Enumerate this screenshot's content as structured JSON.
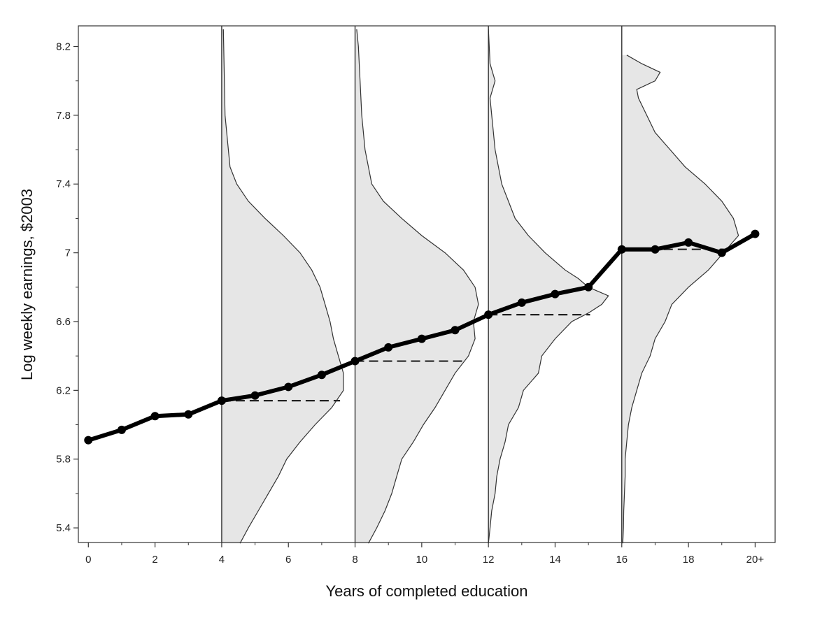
{
  "chart_data": {
    "type": "line",
    "xlabel": "Years of completed education",
    "ylabel": "Log weekly earnings, $2003",
    "xlim": [
      -0.3,
      20.6
    ],
    "ylim": [
      5.315,
      8.32
    ],
    "x_tick_values": [
      0,
      2,
      4,
      6,
      8,
      10,
      12,
      14,
      16,
      18,
      20
    ],
    "x_tick_labels": [
      "0",
      "2",
      "4",
      "6",
      "8",
      "10",
      "12",
      "14",
      "16",
      "18",
      "20+"
    ],
    "y_tick_values": [
      5.4,
      5.8,
      6.2,
      6.6,
      7.0,
      7.4,
      7.8,
      8.2
    ],
    "y_tick_labels": [
      "5.4",
      "5.8",
      "6.2",
      "6.6",
      "7",
      "7.4",
      "7.8",
      "8.2"
    ],
    "grid": false,
    "series": [
      {
        "x": [
          0,
          1,
          2,
          3,
          4,
          5,
          6,
          7,
          8,
          9,
          10,
          11,
          12,
          13,
          14,
          15,
          16,
          17,
          18,
          19,
          20
        ],
        "values": [
          5.91,
          5.97,
          6.05,
          6.06,
          6.14,
          6.17,
          6.22,
          6.29,
          6.37,
          6.45,
          6.5,
          6.55,
          6.64,
          6.71,
          6.76,
          6.8,
          7.02,
          7.02,
          7.06,
          7.0,
          7.11
        ]
      }
    ],
    "density_distributions": [
      {
        "education_years": 4,
        "mean": 6.14,
        "mean_line_to": 7.55,
        "y": [
          8.3,
          7.8,
          7.5,
          7.4,
          7.3,
          7.2,
          7.1,
          7.0,
          6.9,
          6.8,
          6.7,
          6.6,
          6.5,
          6.4,
          6.3,
          6.2,
          6.1,
          6.0,
          5.9,
          5.8,
          5.7,
          5.6,
          5.5,
          5.4,
          5.31
        ],
        "x": [
          4.05,
          4.1,
          4.25,
          4.45,
          4.8,
          5.3,
          5.85,
          6.35,
          6.7,
          6.95,
          7.1,
          7.25,
          7.35,
          7.5,
          7.65,
          7.65,
          7.3,
          6.8,
          6.35,
          5.95,
          5.7,
          5.4,
          5.1,
          4.8,
          4.55
        ]
      },
      {
        "education_years": 8,
        "mean": 6.37,
        "mean_line_to": 11.25,
        "y": [
          8.3,
          8.2,
          8.0,
          7.8,
          7.6,
          7.4,
          7.3,
          7.2,
          7.1,
          7.0,
          6.9,
          6.8,
          6.7,
          6.6,
          6.5,
          6.4,
          6.3,
          6.2,
          6.1,
          6.0,
          5.9,
          5.8,
          5.7,
          5.6,
          5.5,
          5.4,
          5.31
        ],
        "x": [
          8.05,
          8.1,
          8.15,
          8.2,
          8.3,
          8.5,
          8.85,
          9.4,
          10.0,
          10.7,
          11.25,
          11.6,
          11.7,
          11.55,
          11.6,
          11.4,
          11.0,
          10.7,
          10.4,
          10.05,
          9.75,
          9.4,
          9.25,
          9.1,
          8.9,
          8.65,
          8.4
        ]
      },
      {
        "education_years": 12,
        "mean": 6.64,
        "mean_line_to": 15.05,
        "y": [
          8.3,
          8.1,
          8.0,
          7.9,
          7.8,
          7.6,
          7.4,
          7.2,
          7.1,
          7.0,
          6.9,
          6.85,
          6.8,
          6.75,
          6.7,
          6.65,
          6.6,
          6.5,
          6.4,
          6.3,
          6.2,
          6.1,
          6.0,
          5.9,
          5.8,
          5.7,
          5.6,
          5.5,
          5.4,
          5.31
        ],
        "x": [
          12.0,
          12.05,
          12.2,
          12.05,
          12.1,
          12.2,
          12.4,
          12.8,
          13.2,
          13.7,
          14.3,
          14.7,
          15.0,
          15.6,
          15.4,
          15.0,
          14.5,
          14.0,
          13.6,
          13.5,
          13.05,
          12.9,
          12.6,
          12.5,
          12.35,
          12.25,
          12.2,
          12.1,
          12.05,
          12.0
        ]
      },
      {
        "education_years": 16,
        "mean": 7.02,
        "mean_line_to": 19.2,
        "y": [
          8.15,
          8.1,
          8.05,
          8.0,
          7.95,
          7.9,
          7.8,
          7.7,
          7.6,
          7.5,
          7.4,
          7.3,
          7.2,
          7.1,
          7.0,
          6.9,
          6.8,
          6.7,
          6.6,
          6.5,
          6.4,
          6.3,
          6.2,
          6.1,
          6.0,
          5.9,
          5.8,
          5.7,
          5.6,
          5.5,
          5.4,
          5.31
        ],
        "x": [
          16.15,
          16.6,
          17.15,
          17.0,
          16.45,
          16.5,
          16.75,
          17.0,
          17.45,
          17.9,
          18.5,
          19.0,
          19.35,
          19.5,
          19.05,
          18.6,
          18.0,
          17.5,
          17.3,
          17.0,
          16.85,
          16.6,
          16.45,
          16.3,
          16.2,
          16.15,
          16.1,
          16.1,
          16.08,
          16.06,
          16.05,
          16.03
        ]
      }
    ]
  }
}
